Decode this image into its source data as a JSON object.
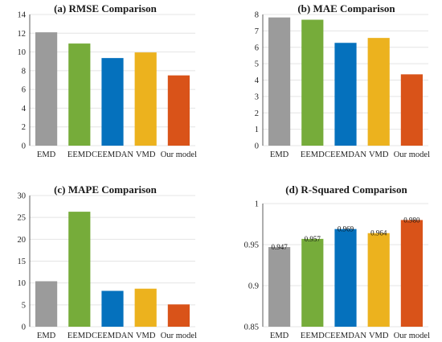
{
  "chart_data": [
    {
      "type": "bar",
      "title": "(a) RMSE Comparison",
      "categories": [
        "EMD",
        "EEMD",
        "CEEMDAN",
        "VMD",
        "Our model"
      ],
      "values": [
        12.1,
        10.9,
        9.35,
        9.95,
        7.5
      ],
      "ylim": [
        0,
        14
      ],
      "yticks": [
        0,
        2,
        4,
        6,
        8,
        10,
        12,
        14
      ],
      "ytick_labels": [
        "0",
        "2",
        "4",
        "6",
        "8",
        "10",
        "12",
        "14"
      ],
      "data_labels": [],
      "grid": true
    },
    {
      "type": "bar",
      "title": "(b) MAE Comparison",
      "categories": [
        "EMD",
        "EEMD",
        "CEEMDAN",
        "VMD",
        "Our model"
      ],
      "values": [
        7.82,
        7.68,
        6.27,
        6.57,
        4.35
      ],
      "ylim": [
        0,
        8
      ],
      "yticks": [
        0,
        1,
        2,
        3,
        4,
        5,
        6,
        7,
        8
      ],
      "ytick_labels": [
        "0",
        "1",
        "2",
        "3",
        "4",
        "5",
        "6",
        "7",
        "8"
      ],
      "data_labels": [],
      "grid": true
    },
    {
      "type": "bar",
      "title": "(c) MAPE Comparison",
      "categories": [
        "EMD",
        "EEMD",
        "CEEMDAN",
        "VMD",
        "Our model"
      ],
      "values": [
        10.4,
        26.3,
        8.2,
        8.7,
        5.1
      ],
      "ylim": [
        0,
        30
      ],
      "yticks": [
        0,
        5,
        10,
        15,
        20,
        25,
        30
      ],
      "ytick_labels": [
        "0",
        "5",
        "10",
        "15",
        "20",
        "25",
        "30"
      ],
      "data_labels": [],
      "grid": true
    },
    {
      "type": "bar",
      "title": "(d) R-Squared Comparison",
      "categories": [
        "EMD",
        "EEMD",
        "CEEMDAN",
        "VMD",
        "Our model"
      ],
      "values": [
        0.947,
        0.957,
        0.969,
        0.964,
        0.98
      ],
      "ylim": [
        0.85,
        1.0
      ],
      "yticks": [
        0.85,
        0.9,
        0.95,
        1.0
      ],
      "ytick_labels": [
        "0.85",
        "0.9",
        "0.95",
        "1"
      ],
      "data_labels": [
        "0.947",
        "0.957",
        "0.969",
        "0.964",
        "0.980"
      ],
      "grid": true
    }
  ],
  "colors": [
    "#9b9b9b",
    "#76ac3a",
    "#0571bd",
    "#ecb21e",
    "#d95319"
  ]
}
